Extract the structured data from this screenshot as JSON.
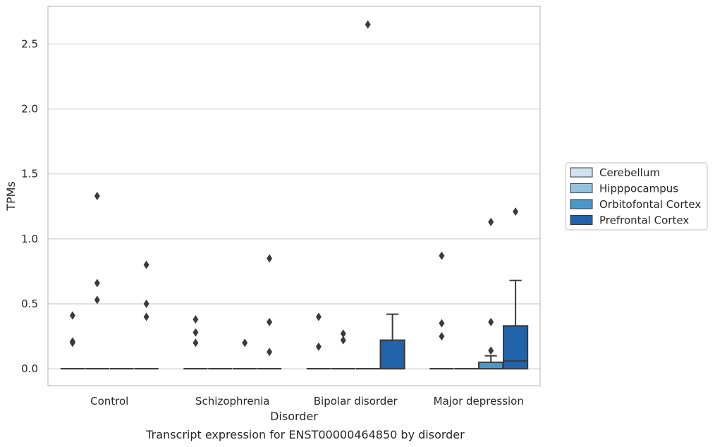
{
  "chart_data": {
    "type": "box",
    "caption": "Transcript expression for ENST00000464850 by disorder",
    "xlabel": "Disorder",
    "ylabel": "TPMs",
    "ylim": [
      -0.13,
      2.79
    ],
    "yticks": [
      0.0,
      0.5,
      1.0,
      1.5,
      2.0,
      2.5
    ],
    "ytick_labels": [
      "0.0",
      "0.5",
      "1.0",
      "1.5",
      "2.0",
      "2.5"
    ],
    "grid": true,
    "legend_position": "right",
    "categories": [
      "Control",
      "Schizophrenia",
      "Bipolar disorder",
      "Major depression"
    ],
    "series": [
      {
        "name": "Cerebellum",
        "color": "#d0e2f1",
        "boxes": [
          {
            "q1": 0,
            "median": 0,
            "q3": 0,
            "whislo": 0,
            "whishi": 0,
            "fliers": [
              0.41,
              0.2,
              0.21
            ]
          },
          {
            "q1": 0,
            "median": 0,
            "q3": 0,
            "whislo": 0,
            "whishi": 0,
            "fliers": [
              0.38,
              0.28,
              0.2
            ]
          },
          {
            "q1": 0,
            "median": 0,
            "q3": 0,
            "whislo": 0,
            "whishi": 0,
            "fliers": [
              0.4,
              0.17
            ]
          },
          {
            "q1": 0,
            "median": 0,
            "q3": 0,
            "whislo": 0,
            "whishi": 0,
            "fliers": [
              0.87,
              0.35,
              0.25
            ]
          }
        ]
      },
      {
        "name": "Hipppocampus",
        "color": "#94c4df",
        "boxes": [
          {
            "q1": 0,
            "median": 0,
            "q3": 0,
            "whislo": 0,
            "whishi": 0,
            "fliers": [
              1.33,
              0.66,
              0.53
            ]
          },
          {
            "q1": 0,
            "median": 0,
            "q3": 0,
            "whislo": 0,
            "whishi": 0,
            "fliers": []
          },
          {
            "q1": 0,
            "median": 0,
            "q3": 0,
            "whislo": 0,
            "whishi": 0,
            "fliers": [
              0.27,
              0.22
            ]
          },
          {
            "q1": 0,
            "median": 0,
            "q3": 0,
            "whislo": 0,
            "whishi": 0,
            "fliers": []
          }
        ]
      },
      {
        "name": "Orbitofontal Cortex",
        "color": "#4a98c9",
        "boxes": [
          {
            "q1": 0,
            "median": 0,
            "q3": 0,
            "whislo": 0,
            "whishi": 0,
            "fliers": []
          },
          {
            "q1": 0,
            "median": 0,
            "q3": 0,
            "whislo": 0,
            "whishi": 0,
            "fliers": [
              0.2
            ]
          },
          {
            "q1": 0,
            "median": 0,
            "q3": 0,
            "whislo": 0,
            "whishi": 0,
            "fliers": [
              2.65
            ]
          },
          {
            "q1": 0,
            "median": 0,
            "q3": 0.05,
            "whislo": 0,
            "whishi": 0.1,
            "fliers": [
              1.13,
              0.36,
              0.14
            ]
          }
        ]
      },
      {
        "name": "Prefrontal Cortex",
        "color": "#2163aa",
        "boxes": [
          {
            "q1": 0,
            "median": 0,
            "q3": 0,
            "whislo": 0,
            "whishi": 0,
            "fliers": [
              0.8,
              0.5,
              0.4
            ]
          },
          {
            "q1": 0,
            "median": 0,
            "q3": 0,
            "whislo": 0,
            "whishi": 0,
            "fliers": [
              0.85,
              0.36,
              0.13
            ]
          },
          {
            "q1": 0,
            "median": 0,
            "q3": 0.22,
            "whislo": 0,
            "whishi": 0.42,
            "fliers": []
          },
          {
            "q1": 0,
            "median": 0.06,
            "q3": 0.33,
            "whislo": 0,
            "whishi": 0.68,
            "fliers": [
              1.21
            ]
          }
        ]
      }
    ]
  }
}
